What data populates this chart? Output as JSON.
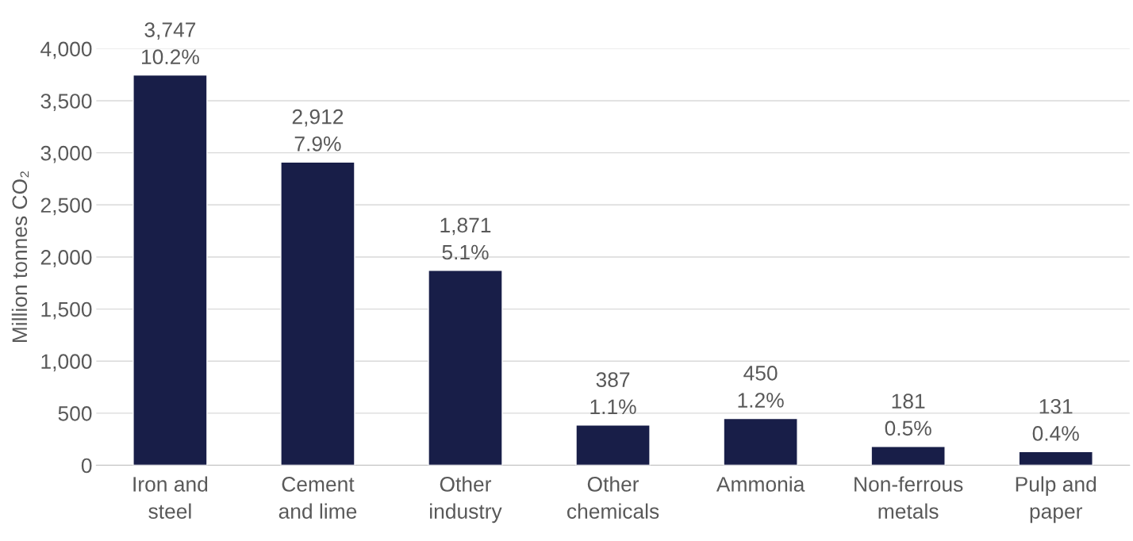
{
  "chart_data": {
    "type": "bar",
    "ylabel": "Million tonnes CO₂",
    "categories": [
      "Iron and\nsteel",
      "Cement\nand lime",
      "Other\nindustry",
      "Other\nchemicals",
      "Ammonia",
      "Non-ferrous\nmetals",
      "Pulp and\npaper"
    ],
    "values": [
      3747,
      2912,
      1871,
      387,
      450,
      181,
      131
    ],
    "value_labels": [
      "3,747\n10.2%",
      "2,912\n7.9%",
      "1,871\n5.1%",
      "387\n1.1%",
      "450\n1.2%",
      "181\n0.5%",
      "131\n0.4%"
    ],
    "color": "#181e48",
    "ylim": [
      0,
      4000
    ],
    "yticks": [
      {
        "value": 0,
        "label": "0"
      },
      {
        "value": 500,
        "label": "500"
      },
      {
        "value": 1000,
        "label": "1,000"
      },
      {
        "value": 1500,
        "label": "1,500"
      },
      {
        "value": 2000,
        "label": "2,000"
      },
      {
        "value": 2500,
        "label": "2,500"
      },
      {
        "value": 3000,
        "label": "3,000"
      },
      {
        "value": 3500,
        "label": "3,500"
      },
      {
        "value": 4000,
        "label": "4,000"
      }
    ],
    "grid": "y"
  }
}
